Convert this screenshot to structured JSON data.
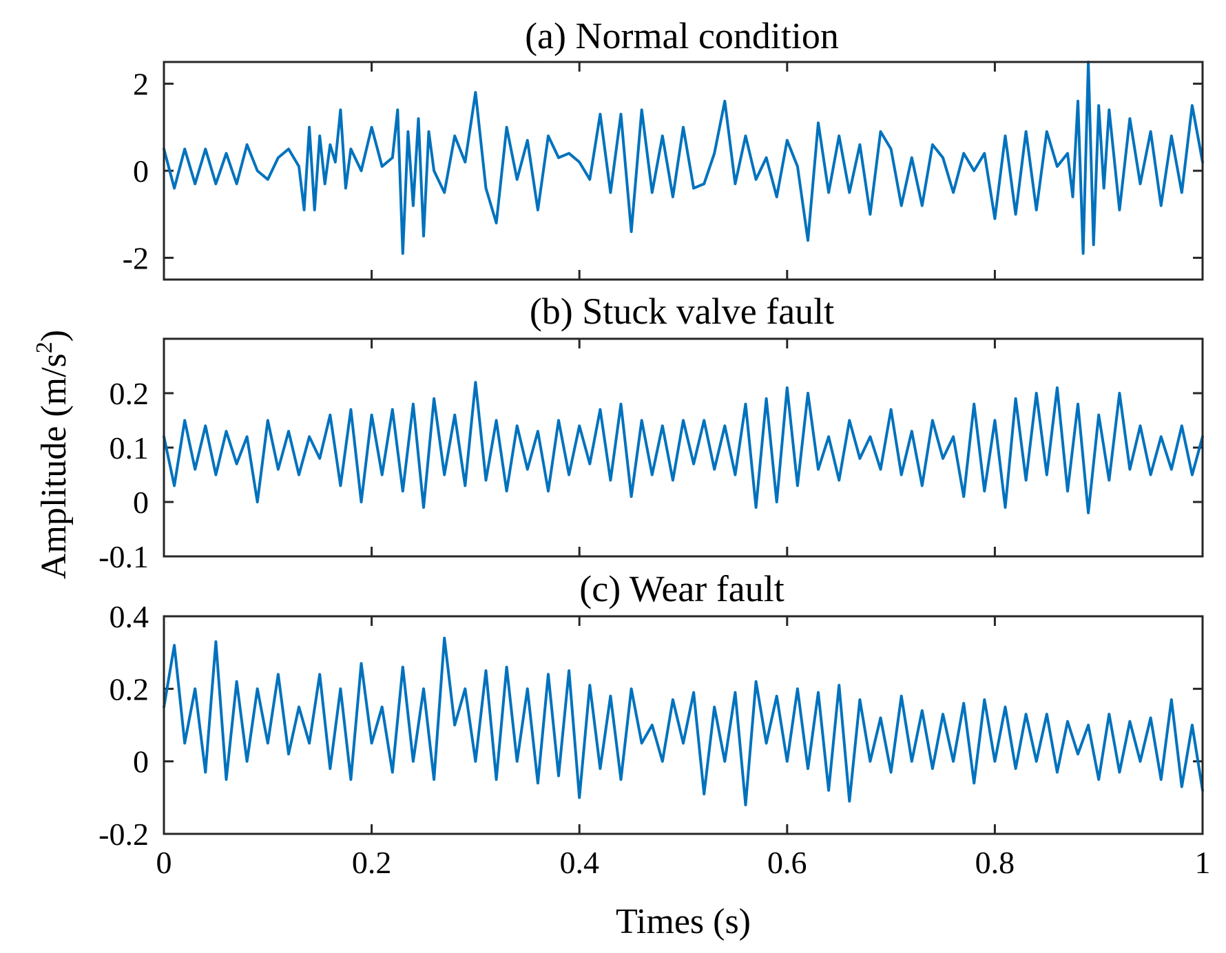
{
  "chart_data": {
    "type": "line",
    "xlabel": "Times (s)",
    "ylabel": "Amplitude (m/s",
    "ylabel_superscript": "2",
    "ylabel_suffix": ")",
    "xlim": [
      0,
      1
    ],
    "x_ticks": [
      "0",
      "0.2",
      "0.4",
      "0.6",
      "0.8",
      "1"
    ],
    "line_color": "#0072BD",
    "panels": [
      {
        "title": "(a) Normal condition",
        "ylim": [
          -2.5,
          2.5
        ],
        "y_ticks": [
          "2",
          "0",
          "-2"
        ],
        "y_tick_values": [
          2,
          0,
          -2
        ],
        "series": {
          "name": "Normal condition",
          "x": [
            0,
            0.01,
            0.02,
            0.03,
            0.04,
            0.05,
            0.06,
            0.07,
            0.08,
            0.09,
            0.1,
            0.11,
            0.12,
            0.13,
            0.135,
            0.14,
            0.145,
            0.15,
            0.155,
            0.16,
            0.165,
            0.17,
            0.175,
            0.18,
            0.19,
            0.2,
            0.21,
            0.22,
            0.225,
            0.23,
            0.235,
            0.24,
            0.245,
            0.25,
            0.255,
            0.26,
            0.27,
            0.28,
            0.29,
            0.3,
            0.31,
            0.32,
            0.33,
            0.34,
            0.35,
            0.36,
            0.37,
            0.38,
            0.39,
            0.4,
            0.41,
            0.42,
            0.43,
            0.44,
            0.45,
            0.46,
            0.47,
            0.48,
            0.49,
            0.5,
            0.51,
            0.52,
            0.53,
            0.54,
            0.55,
            0.56,
            0.57,
            0.58,
            0.59,
            0.6,
            0.61,
            0.62,
            0.63,
            0.64,
            0.65,
            0.66,
            0.67,
            0.68,
            0.69,
            0.7,
            0.71,
            0.72,
            0.73,
            0.74,
            0.75,
            0.76,
            0.77,
            0.78,
            0.79,
            0.8,
            0.81,
            0.82,
            0.83,
            0.84,
            0.85,
            0.86,
            0.87,
            0.875,
            0.88,
            0.885,
            0.89,
            0.895,
            0.9,
            0.905,
            0.91,
            0.92,
            0.93,
            0.94,
            0.95,
            0.96,
            0.97,
            0.98,
            0.99,
            1.0
          ],
          "y": [
            0.5,
            -0.4,
            0.5,
            -0.3,
            0.5,
            -0.3,
            0.4,
            -0.3,
            0.6,
            0.0,
            -0.2,
            0.3,
            0.5,
            0.1,
            -0.9,
            1.0,
            -0.9,
            0.8,
            -0.3,
            0.6,
            0.2,
            1.4,
            -0.4,
            0.5,
            0.0,
            1.0,
            0.1,
            0.3,
            1.4,
            -1.9,
            0.9,
            -0.8,
            1.2,
            -1.5,
            0.9,
            0.0,
            -0.5,
            0.8,
            0.2,
            1.8,
            -0.4,
            -1.2,
            1.0,
            -0.2,
            0.7,
            -0.9,
            0.8,
            0.3,
            0.4,
            0.2,
            -0.2,
            1.3,
            -0.5,
            1.3,
            -1.4,
            1.4,
            -0.5,
            0.8,
            -0.6,
            1.0,
            -0.4,
            -0.3,
            0.4,
            1.6,
            -0.3,
            0.8,
            -0.2,
            0.3,
            -0.6,
            0.7,
            0.1,
            -1.6,
            1.1,
            -0.5,
            0.8,
            -0.5,
            0.6,
            -1.0,
            0.9,
            0.5,
            -0.8,
            0.3,
            -0.8,
            0.6,
            0.3,
            -0.5,
            0.4,
            0.0,
            0.4,
            -1.1,
            0.8,
            -1.0,
            0.9,
            -0.9,
            0.9,
            0.1,
            0.4,
            -0.6,
            1.6,
            -1.9,
            2.5,
            -1.7,
            1.5,
            -0.4,
            1.4,
            -0.9,
            1.2,
            -0.3,
            0.9,
            -0.8,
            0.8,
            -0.5,
            1.5,
            0.2
          ]
        }
      },
      {
        "title": "(b) Stuck valve fault",
        "ylim": [
          -0.1,
          0.3
        ],
        "y_ticks": [
          "0.2",
          "0.1",
          "0",
          "-0.1"
        ],
        "y_tick_values": [
          0.2,
          0.1,
          0,
          -0.1
        ],
        "series": {
          "name": "Stuck valve fault",
          "x": [
            0,
            0.01,
            0.02,
            0.03,
            0.04,
            0.05,
            0.06,
            0.07,
            0.08,
            0.09,
            0.1,
            0.11,
            0.12,
            0.13,
            0.14,
            0.15,
            0.16,
            0.17,
            0.18,
            0.19,
            0.2,
            0.21,
            0.22,
            0.23,
            0.24,
            0.25,
            0.26,
            0.27,
            0.28,
            0.29,
            0.3,
            0.31,
            0.32,
            0.33,
            0.34,
            0.35,
            0.36,
            0.37,
            0.38,
            0.39,
            0.4,
            0.41,
            0.42,
            0.43,
            0.44,
            0.45,
            0.46,
            0.47,
            0.48,
            0.49,
            0.5,
            0.51,
            0.52,
            0.53,
            0.54,
            0.55,
            0.56,
            0.57,
            0.58,
            0.59,
            0.6,
            0.61,
            0.62,
            0.63,
            0.64,
            0.65,
            0.66,
            0.67,
            0.68,
            0.69,
            0.7,
            0.71,
            0.72,
            0.73,
            0.74,
            0.75,
            0.76,
            0.77,
            0.78,
            0.79,
            0.8,
            0.81,
            0.82,
            0.83,
            0.84,
            0.85,
            0.86,
            0.87,
            0.88,
            0.89,
            0.9,
            0.91,
            0.92,
            0.93,
            0.94,
            0.95,
            0.96,
            0.97,
            0.98,
            0.99,
            1.0
          ],
          "y": [
            0.12,
            0.03,
            0.15,
            0.06,
            0.14,
            0.05,
            0.13,
            0.07,
            0.12,
            0.0,
            0.15,
            0.06,
            0.13,
            0.05,
            0.12,
            0.08,
            0.16,
            0.03,
            0.17,
            0.0,
            0.16,
            0.05,
            0.17,
            0.02,
            0.18,
            -0.01,
            0.19,
            0.05,
            0.16,
            0.03,
            0.22,
            0.04,
            0.15,
            0.02,
            0.14,
            0.06,
            0.13,
            0.02,
            0.15,
            0.05,
            0.14,
            0.07,
            0.17,
            0.04,
            0.18,
            0.01,
            0.15,
            0.05,
            0.14,
            0.04,
            0.15,
            0.07,
            0.15,
            0.06,
            0.14,
            0.05,
            0.18,
            -0.01,
            0.19,
            0.0,
            0.21,
            0.03,
            0.2,
            0.06,
            0.12,
            0.04,
            0.15,
            0.08,
            0.12,
            0.06,
            0.17,
            0.05,
            0.13,
            0.03,
            0.15,
            0.08,
            0.12,
            0.01,
            0.18,
            0.02,
            0.15,
            -0.01,
            0.19,
            0.04,
            0.2,
            0.05,
            0.21,
            0.02,
            0.18,
            -0.02,
            0.16,
            0.04,
            0.2,
            0.06,
            0.14,
            0.05,
            0.12,
            0.06,
            0.14,
            0.05,
            0.12
          ]
        }
      },
      {
        "title": "(c) Wear fault",
        "ylim": [
          -0.2,
          0.4
        ],
        "y_ticks": [
          "0.4",
          "0.2",
          "0",
          "-0.2"
        ],
        "y_tick_values": [
          0.4,
          0.2,
          0,
          -0.2
        ],
        "series": {
          "name": "Wear fault",
          "x": [
            0,
            0.01,
            0.02,
            0.03,
            0.04,
            0.05,
            0.06,
            0.07,
            0.08,
            0.09,
            0.1,
            0.11,
            0.12,
            0.13,
            0.14,
            0.15,
            0.16,
            0.17,
            0.18,
            0.19,
            0.2,
            0.21,
            0.22,
            0.23,
            0.24,
            0.25,
            0.26,
            0.27,
            0.28,
            0.29,
            0.3,
            0.31,
            0.32,
            0.33,
            0.34,
            0.35,
            0.36,
            0.37,
            0.38,
            0.39,
            0.4,
            0.41,
            0.42,
            0.43,
            0.44,
            0.45,
            0.46,
            0.47,
            0.48,
            0.49,
            0.5,
            0.51,
            0.52,
            0.53,
            0.54,
            0.55,
            0.56,
            0.57,
            0.58,
            0.59,
            0.6,
            0.61,
            0.62,
            0.63,
            0.64,
            0.65,
            0.66,
            0.67,
            0.68,
            0.69,
            0.7,
            0.71,
            0.72,
            0.73,
            0.74,
            0.75,
            0.76,
            0.77,
            0.78,
            0.79,
            0.8,
            0.81,
            0.82,
            0.83,
            0.84,
            0.85,
            0.86,
            0.87,
            0.88,
            0.89,
            0.9,
            0.91,
            0.92,
            0.93,
            0.94,
            0.95,
            0.96,
            0.97,
            0.98,
            0.99,
            1.0
          ],
          "y": [
            0.15,
            0.32,
            0.05,
            0.2,
            -0.03,
            0.33,
            -0.05,
            0.22,
            0.0,
            0.2,
            0.05,
            0.24,
            0.02,
            0.15,
            0.05,
            0.24,
            -0.02,
            0.2,
            -0.05,
            0.27,
            0.05,
            0.15,
            -0.03,
            0.26,
            0.0,
            0.2,
            -0.05,
            0.34,
            0.1,
            0.2,
            0.0,
            0.25,
            -0.05,
            0.26,
            0.0,
            0.2,
            -0.06,
            0.24,
            -0.04,
            0.25,
            -0.1,
            0.21,
            -0.02,
            0.18,
            -0.05,
            0.2,
            0.05,
            0.1,
            0.0,
            0.17,
            0.05,
            0.19,
            -0.09,
            0.15,
            0.0,
            0.19,
            -0.12,
            0.22,
            0.05,
            0.18,
            0.0,
            0.2,
            -0.02,
            0.19,
            -0.08,
            0.21,
            -0.11,
            0.17,
            0.0,
            0.12,
            -0.03,
            0.18,
            0.0,
            0.14,
            -0.02,
            0.13,
            0.0,
            0.16,
            -0.06,
            0.17,
            0.0,
            0.15,
            -0.02,
            0.13,
            0.0,
            0.13,
            -0.03,
            0.11,
            0.02,
            0.1,
            -0.05,
            0.13,
            -0.03,
            0.11,
            0.0,
            0.12,
            -0.05,
            0.17,
            -0.07,
            0.1,
            -0.08
          ]
        }
      }
    ]
  }
}
